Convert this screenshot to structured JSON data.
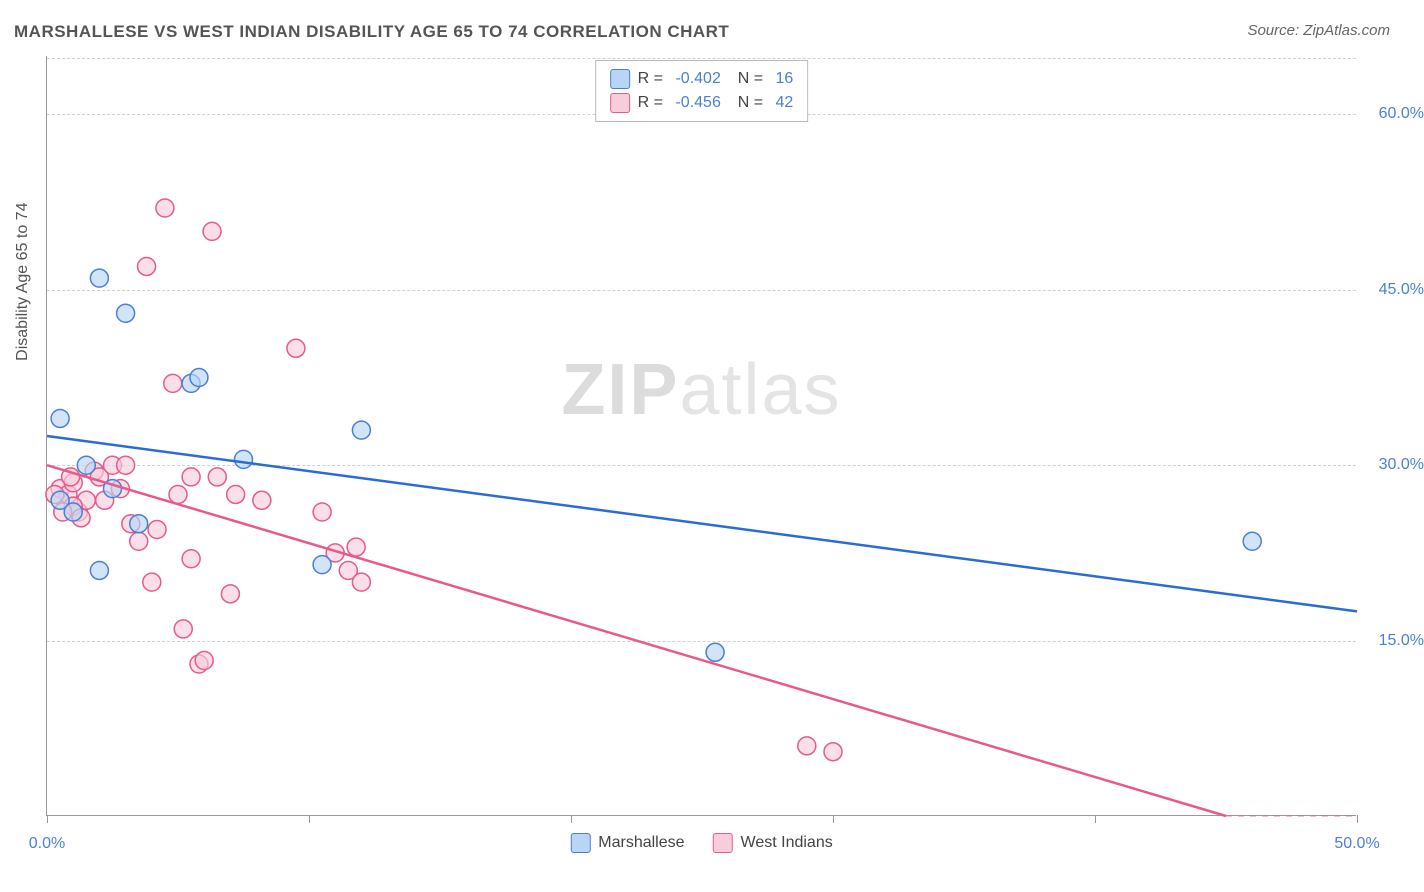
{
  "title": "MARSHALLESE VS WEST INDIAN DISABILITY AGE 65 TO 74 CORRELATION CHART",
  "source": "Source: ZipAtlas.com",
  "y_axis_label": "Disability Age 65 to 74",
  "watermark": {
    "bold": "ZIP",
    "rest": "atlas"
  },
  "chart": {
    "type": "scatter",
    "xlim": [
      0,
      50
    ],
    "ylim": [
      0,
      65
    ],
    "x_ticks": [
      0,
      10,
      20,
      30,
      40,
      50
    ],
    "x_tick_labels": {
      "0": "0.0%",
      "50": "50.0%"
    },
    "y_gridlines": [
      15,
      30,
      45,
      60
    ],
    "y_tick_labels": {
      "15": "15.0%",
      "30": "30.0%",
      "45": "45.0%",
      "60": "60.0%"
    },
    "grid_color": "#d0d0d0",
    "background_color": "#ffffff",
    "axis_color": "#999999",
    "marker_radius": 9,
    "marker_stroke_width": 1.5,
    "line_width": 2.5,
    "series": [
      {
        "name": "Marshallese",
        "fill_color": "#b8d5f5",
        "stroke_color": "#4a7fd8",
        "line_color": "#2b6cd4",
        "fill_opacity": 0.65,
        "R": "-0.402",
        "N": "16",
        "trend": {
          "x1": 0,
          "y1": 32.5,
          "x2": 50,
          "y2": 17.5
        },
        "points": [
          [
            0.5,
            34
          ],
          [
            2,
            46
          ],
          [
            3,
            43
          ],
          [
            3.5,
            25
          ],
          [
            5.5,
            37
          ],
          [
            5.8,
            37.5
          ],
          [
            7.5,
            30.5
          ],
          [
            10.5,
            21.5
          ],
          [
            12,
            33
          ],
          [
            25.5,
            14
          ],
          [
            46,
            23.5
          ],
          [
            0.5,
            27
          ],
          [
            2,
            21
          ],
          [
            1,
            26
          ],
          [
            1.5,
            30
          ],
          [
            2.5,
            28
          ]
        ]
      },
      {
        "name": "West Indians",
        "fill_color": "#f7cddb",
        "stroke_color": "#e85a8a",
        "line_color": "#e85a8a",
        "fill_opacity": 0.65,
        "R": "-0.456",
        "N": "42",
        "trend": {
          "x1": 0,
          "y1": 30,
          "x2": 45,
          "y2": 0
        },
        "points": [
          [
            0.5,
            28
          ],
          [
            0.8,
            27.5
          ],
          [
            1,
            28.5
          ],
          [
            1.2,
            26
          ],
          [
            1.5,
            27
          ],
          [
            1.8,
            29.5
          ],
          [
            2,
            29
          ],
          [
            2.2,
            27
          ],
          [
            2.5,
            30
          ],
          [
            2.8,
            28
          ],
          [
            3,
            30
          ],
          [
            3.2,
            25
          ],
          [
            3.5,
            23.5
          ],
          [
            3.8,
            47
          ],
          [
            4,
            20
          ],
          [
            4.2,
            24.5
          ],
          [
            4.5,
            52
          ],
          [
            4.8,
            37
          ],
          [
            5,
            27.5
          ],
          [
            5.2,
            16
          ],
          [
            5.5,
            29
          ],
          [
            5.5,
            22
          ],
          [
            5.8,
            13
          ],
          [
            6,
            13.3
          ],
          [
            6.3,
            50
          ],
          [
            6.5,
            29
          ],
          [
            7,
            19
          ],
          [
            7.2,
            27.5
          ],
          [
            8.2,
            27
          ],
          [
            9.5,
            40
          ],
          [
            11,
            22.5
          ],
          [
            11.5,
            21
          ],
          [
            11.8,
            23
          ],
          [
            12,
            20
          ],
          [
            10.5,
            26
          ],
          [
            29,
            6
          ],
          [
            30,
            5.5
          ],
          [
            1,
            26.5
          ],
          [
            1.3,
            25.5
          ],
          [
            0.3,
            27.5
          ],
          [
            0.6,
            26
          ],
          [
            0.9,
            29
          ]
        ]
      }
    ],
    "legend_bottom": [
      {
        "label": "Marshallese",
        "swatch": "blue"
      },
      {
        "label": "West Indians",
        "swatch": "pink"
      }
    ]
  }
}
